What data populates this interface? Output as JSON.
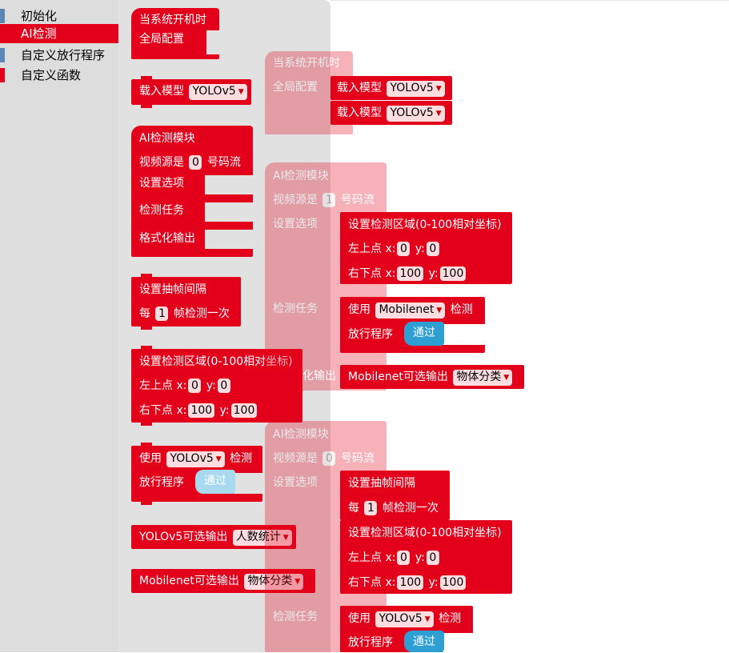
{
  "categories": [
    {
      "label": "初始化",
      "color": "#5b87b5"
    },
    {
      "label": "AI检测",
      "color": "#e3001b"
    },
    {
      "label": "自定义放行程序",
      "color": "#5b87b5"
    },
    {
      "label": "自定义函数",
      "color": "#e3001b"
    }
  ],
  "colors": {
    "block": "#e3001b",
    "pass": "#2e9fd3",
    "field": "#fbdde0"
  },
  "flyout": {
    "on_boot_title": "当系统开机时",
    "global_config": "全局配置",
    "load_model": "载入模型",
    "yolov5": "YOLOv5",
    "ai_module": "AI检测模块",
    "video_source": "视频源是",
    "video_source_value": "0",
    "stream_suffix": "号码流",
    "set_options": "设置选项",
    "detect_task": "检测任务",
    "format_output": "格式化输出",
    "frame_interval": "设置抽帧间隔",
    "every": "每",
    "every_value": "1",
    "frame_suffix": "帧检测一次",
    "region": "设置检测区域(0-100相对坐标)",
    "top_left": "左上点 x:",
    "y_label": "y:",
    "tl_x": "0",
    "tl_y": "0",
    "bottom_right": "右下点 x:",
    "br_x": "100",
    "br_y": "100",
    "use": "使用",
    "detect": "检测",
    "pass_prog": "放行程序",
    "pass": "通过",
    "yolo_output": "YOLOv5可选输出",
    "people_count": "人数统计",
    "mobilenet_output": "Mobilenet可选输出",
    "mobilenet": "Mobilenet",
    "object_class": "物体分类"
  },
  "workspace": {
    "stack1": {
      "title": "当系统开机时",
      "global": "全局配置",
      "model1": "YOLOv5",
      "model2": "YOLOv5",
      "load": "载入模型"
    },
    "stack2": {
      "title": "AI检测模块",
      "video_value": "1",
      "tl_x": "0",
      "tl_y": "0",
      "br_x": "100",
      "br_y": "100",
      "model": "Mobilenet",
      "output_label": "Mobilenet可选输出",
      "output_value": "物体分类",
      "format_partial": "化输出"
    },
    "stack3": {
      "title": "AI检测模块",
      "video_value": "0",
      "every_value": "1",
      "tl_x": "0",
      "tl_y": "0",
      "br_x": "100",
      "br_y": "100",
      "model": "YOLOv5"
    }
  }
}
